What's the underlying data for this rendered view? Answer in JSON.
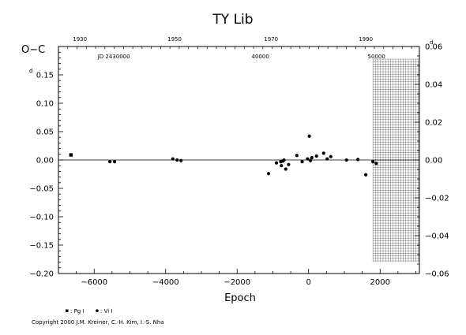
{
  "chart_data": {
    "type": "scatter",
    "title": "TY  Lib",
    "ylabel": "O−C",
    "xlabel": "Epoch",
    "xlim": [
      -7000,
      3100
    ],
    "ylim": [
      -0.2,
      0.2
    ],
    "x_ticks": [
      -6000,
      -4000,
      -2000,
      0,
      2000
    ],
    "x_tick_labels": [
      "−6000",
      "−4000",
      "−2000",
      "0",
      "2000"
    ],
    "y_ticks": [
      -0.2,
      -0.15,
      -0.1,
      -0.05,
      0.0,
      0.05,
      0.1,
      0.15
    ],
    "y_tick_labels": [
      "−0.20",
      "−0.15",
      "−0.10",
      "−0.05",
      "0.00",
      "0.05",
      "0.10",
      "0.15"
    ],
    "y_unit_superscript": "d",
    "right_axis": {
      "ylim": [
        -0.06,
        0.06
      ],
      "ticks": [
        -0.06,
        -0.04,
        -0.02,
        0.0,
        0.02,
        0.04,
        0.06
      ],
      "tick_labels": [
        "−0.06",
        "−0.04",
        "−0.02",
        "0.00",
        "0.02",
        "0.04",
        "0.06"
      ]
    },
    "top_year_axis": {
      "labels": [
        {
          "epoch": -6400,
          "text": "1930"
        },
        {
          "epoch": -3750,
          "text": "1950"
        },
        {
          "epoch": -1050,
          "text": "1970"
        },
        {
          "epoch": 1600,
          "text": "1990"
        }
      ]
    },
    "jd_labels": [
      {
        "epoch": -5450,
        "text": "JD 2430000"
      },
      {
        "epoch": -1350,
        "text": "40000"
      },
      {
        "epoch": 1900,
        "text": "50000"
      }
    ],
    "future_region": {
      "from": 1800,
      "to": 3100
    },
    "zero_line": true,
    "legend": [
      {
        "marker": "square",
        "text": ": Pg I"
      },
      {
        "marker": "circle",
        "text": ": Vi I"
      }
    ],
    "series": [
      {
        "marker": "square",
        "points": [
          {
            "x": -6650,
            "y": 0.009
          }
        ]
      },
      {
        "marker": "circle",
        "points": [
          {
            "x": -5560,
            "y": -0.003
          },
          {
            "x": -5430,
            "y": -0.003
          },
          {
            "x": -3800,
            "y": 0.002
          },
          {
            "x": -3680,
            "y": 0.0
          },
          {
            "x": -3570,
            "y": -0.001
          },
          {
            "x": -1120,
            "y": -0.024
          },
          {
            "x": -900,
            "y": -0.005
          },
          {
            "x": -780,
            "y": -0.003
          },
          {
            "x": -760,
            "y": -0.01
          },
          {
            "x": -720,
            "y": -0.002
          },
          {
            "x": -690,
            "y": 0.0
          },
          {
            "x": -640,
            "y": -0.016
          },
          {
            "x": -560,
            "y": -0.008
          },
          {
            "x": -330,
            "y": 0.008
          },
          {
            "x": -180,
            "y": -0.003
          },
          {
            "x": -30,
            "y": 0.002
          },
          {
            "x": 20,
            "y": 0.042
          },
          {
            "x": 50,
            "y": -0.001
          },
          {
            "x": 90,
            "y": 0.004
          },
          {
            "x": 220,
            "y": 0.007
          },
          {
            "x": 420,
            "y": 0.012
          },
          {
            "x": 520,
            "y": 0.002
          },
          {
            "x": 620,
            "y": 0.006
          },
          {
            "x": 1060,
            "y": 0.0
          },
          {
            "x": 1380,
            "y": 0.001
          },
          {
            "x": 1600,
            "y": -0.026
          },
          {
            "x": 1800,
            "y": -0.003
          },
          {
            "x": 1890,
            "y": -0.006
          }
        ]
      }
    ]
  },
  "copyright": "Copyright 2000 J.M. Kreiner, C.-H. Kim, I.-S. Nha"
}
